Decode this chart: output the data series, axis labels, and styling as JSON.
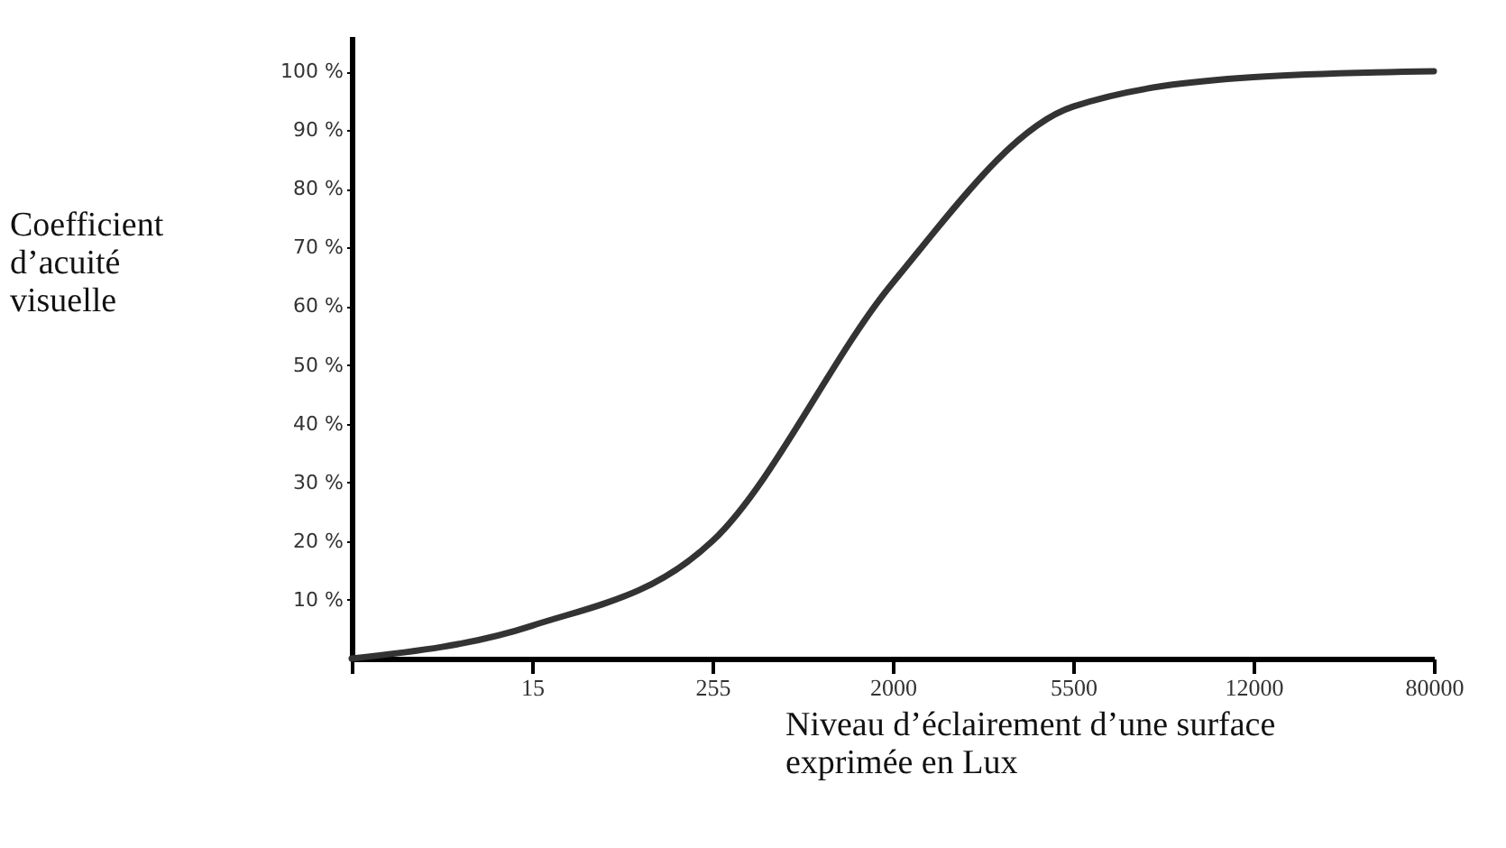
{
  "chart_data": {
    "type": "line",
    "xlabel": "Niveau d’éclairement d’une surface exprimée en Lux",
    "ylabel": "Coefficient d’acuité visuelle",
    "categories": [
      null,
      "15",
      "255",
      "2000",
      "5500",
      "12000",
      "80000"
    ],
    "series": [
      {
        "color": "#333333",
        "values": [
          0,
          5.6,
          20,
          64,
          94,
          99,
          100
        ]
      }
    ],
    "ylim": [
      0,
      106
    ],
    "yticks": [
      {
        "value": 10,
        "label": "10 %"
      },
      {
        "value": 20,
        "label": "20 %"
      },
      {
        "value": 30,
        "label": "30 %"
      },
      {
        "value": 40,
        "label": "40 %"
      },
      {
        "value": 50,
        "label": "50 %"
      },
      {
        "value": 60,
        "label": "60 %"
      },
      {
        "value": 70,
        "label": "70 %"
      },
      {
        "value": 80,
        "label": "80 %"
      },
      {
        "value": 90,
        "label": "90 %"
      },
      {
        "value": 100,
        "label": "100 %"
      }
    ],
    "grid": false,
    "legend": false
  }
}
